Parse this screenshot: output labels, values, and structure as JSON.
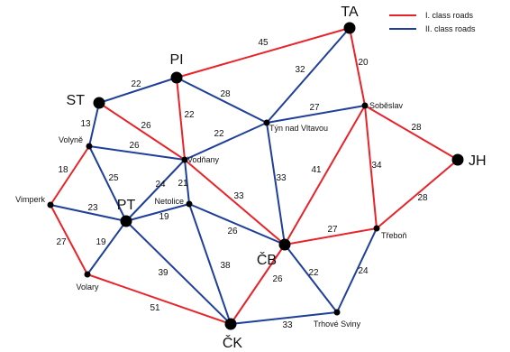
{
  "colors": {
    "class1": "#e8232a",
    "class2": "#1f3f99",
    "node": "#000000"
  },
  "legend": [
    {
      "label": "I. class  roads",
      "class": 1
    },
    {
      "label": "II. class  roads",
      "class": 2
    }
  ],
  "nodes": [
    {
      "id": "TA",
      "label": "TA"
    },
    {
      "id": "PI",
      "label": "PI"
    },
    {
      "id": "ST",
      "label": "ST"
    },
    {
      "id": "JH",
      "label": "JH"
    },
    {
      "id": "PT",
      "label": "PT"
    },
    {
      "id": "CB",
      "label": "ČB"
    },
    {
      "id": "CK",
      "label": "ČK"
    },
    {
      "id": "SOB",
      "label": "Soběslav"
    },
    {
      "id": "TYN",
      "label": "Týn nad Vltavou"
    },
    {
      "id": "VOL",
      "label": "Volyně"
    },
    {
      "id": "VOD",
      "label": "Vodňany"
    },
    {
      "id": "NET",
      "label": "Netolice"
    },
    {
      "id": "VIM",
      "label": "Vimperk"
    },
    {
      "id": "VLR",
      "label": "Volary"
    },
    {
      "id": "TRE",
      "label": "Třeboň"
    },
    {
      "id": "TSV",
      "label": "Trhové Sviny"
    }
  ],
  "edges": [
    {
      "from": "PI",
      "to": "TA",
      "class": 1,
      "label": "45"
    },
    {
      "from": "TA",
      "to": "SOB",
      "class": 1,
      "label": "20"
    },
    {
      "from": "TA",
      "to": "TYN",
      "class": 2,
      "label": "32"
    },
    {
      "from": "ST",
      "to": "PI",
      "class": 2,
      "label": "22"
    },
    {
      "from": "PI",
      "to": "TYN",
      "class": 2,
      "label": "28"
    },
    {
      "from": "PI",
      "to": "VOD",
      "class": 1,
      "label": "22"
    },
    {
      "from": "TYN",
      "to": "SOB",
      "class": 2,
      "label": "27"
    },
    {
      "from": "ST",
      "to": "VOD",
      "class": 1,
      "label": "26"
    },
    {
      "from": "ST",
      "to": "VOL",
      "class": 2,
      "label": "13"
    },
    {
      "from": "VOD",
      "to": "TYN",
      "class": 2,
      "label": "22"
    },
    {
      "from": "SOB",
      "to": "JH",
      "class": 1,
      "label": "28"
    },
    {
      "from": "VOL",
      "to": "VOD",
      "class": 2,
      "label": "26"
    },
    {
      "from": "VOL",
      "to": "VIM",
      "class": 1,
      "label": "18"
    },
    {
      "from": "VOL",
      "to": "PT",
      "class": 2,
      "label": "25"
    },
    {
      "from": "VOD",
      "to": "PT",
      "class": 2,
      "label": "24"
    },
    {
      "from": "VOD",
      "to": "NET",
      "class": 2,
      "label": "21"
    },
    {
      "from": "VOD",
      "to": "CB",
      "class": 1,
      "label": "33"
    },
    {
      "from": "TYN",
      "to": "CB",
      "class": 2,
      "label": "33"
    },
    {
      "from": "SOB",
      "to": "CB",
      "class": 1,
      "label": "41"
    },
    {
      "from": "SOB",
      "to": "TRE",
      "class": 1,
      "label": "34"
    },
    {
      "from": "JH",
      "to": "TRE",
      "class": 1,
      "label": "28"
    },
    {
      "from": "VIM",
      "to": "PT",
      "class": 2,
      "label": "23"
    },
    {
      "from": "NET",
      "to": "PT",
      "class": 2,
      "label": "19"
    },
    {
      "from": "VIM",
      "to": "VLR",
      "class": 1,
      "label": "27"
    },
    {
      "from": "PT",
      "to": "VLR",
      "class": 2,
      "label": "19"
    },
    {
      "from": "NET",
      "to": "CB",
      "class": 2,
      "label": "26"
    },
    {
      "from": "CB",
      "to": "TRE",
      "class": 1,
      "label": "27"
    },
    {
      "from": "PT",
      "to": "CK",
      "class": 2,
      "label": "39"
    },
    {
      "from": "NET",
      "to": "CK",
      "class": 2,
      "label": "38"
    },
    {
      "from": "CB",
      "to": "CK",
      "class": 1,
      "label": "26"
    },
    {
      "from": "CB",
      "to": "TSV",
      "class": 2,
      "label": "22"
    },
    {
      "from": "TRE",
      "to": "TSV",
      "class": 2,
      "label": "24"
    },
    {
      "from": "VLR",
      "to": "CK",
      "class": 1,
      "label": "51"
    },
    {
      "from": "CK",
      "to": "TSV",
      "class": 2,
      "label": "33"
    }
  ]
}
